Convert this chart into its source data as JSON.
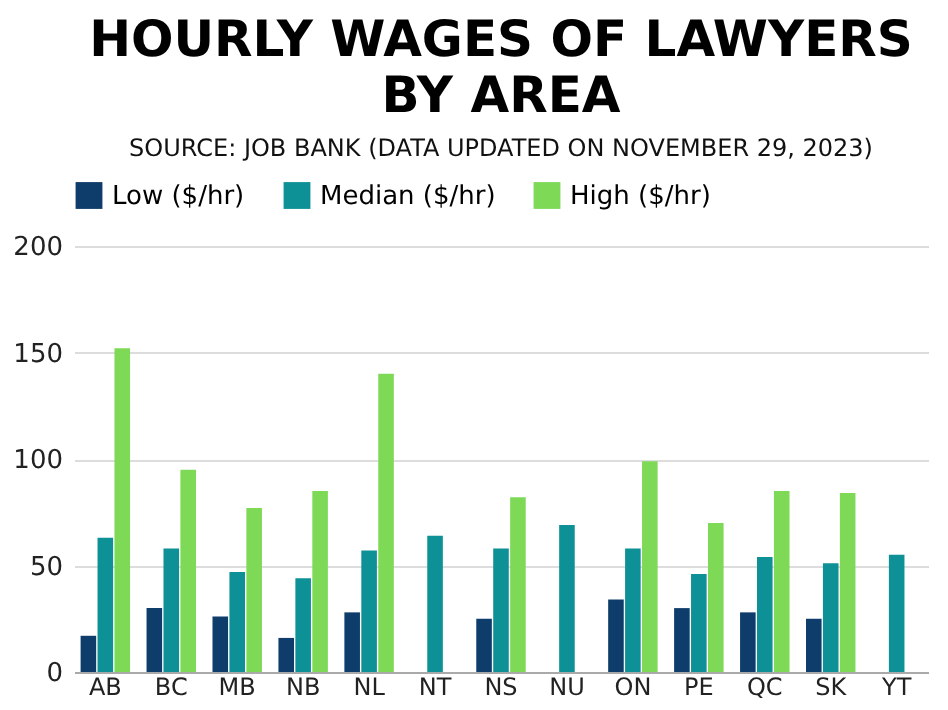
{
  "chart_data": {
    "type": "bar",
    "title": "HOURLY WAGES OF LAWYERS BY AREA",
    "subtitle": "SOURCE: JOB BANK (DATA UPDATED ON NOVEMBER 29, 2023)",
    "categories": [
      "AB",
      "BC",
      "MB",
      "NB",
      "NL",
      "NT",
      "NS",
      "NU",
      "ON",
      "PE",
      "QC",
      "SK",
      "YT"
    ],
    "series": [
      {
        "name": "Low ($/hr)",
        "color": "#0f3d6b",
        "values": [
          17,
          30,
          26,
          16,
          28,
          null,
          25,
          null,
          34,
          30,
          28,
          25,
          null
        ]
      },
      {
        "name": "Median ($/hr)",
        "color": "#0e9196",
        "values": [
          63,
          58,
          47,
          44,
          57,
          64,
          58,
          69,
          58,
          46,
          54,
          51,
          55
        ]
      },
      {
        "name": "High ($/hr)",
        "color": "#7ed957",
        "values": [
          152,
          95,
          77,
          85,
          140,
          null,
          82,
          null,
          99,
          70,
          85,
          84,
          null
        ]
      }
    ],
    "ylim": [
      0,
      200
    ],
    "yticks": [
      0,
      50,
      100,
      150,
      200
    ],
    "grid": "y",
    "legend": "top"
  }
}
